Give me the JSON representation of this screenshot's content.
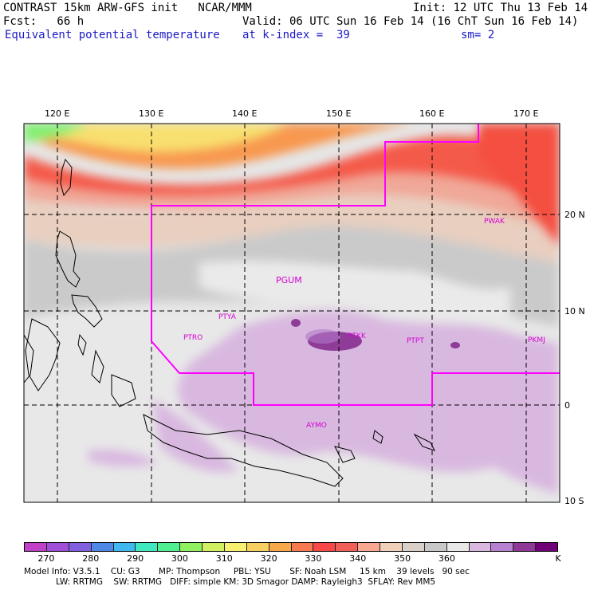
{
  "header": {
    "left_line1": "CONTRAST 15km ARW-GFS init   NCAR/MMM",
    "left_line2": "Fcst:   66 h",
    "left_line3": "Equivalent potential temperature",
    "right_line1": "Init: 12 UTC Thu 13 Feb 14",
    "right_line2": "Valid: 06 UTC Sun 16 Feb 14 (16 ChT Sun 16 Feb 14)",
    "right_line3a": "at k-index =  39",
    "right_line3b": "sm= 2"
  },
  "map": {
    "lon_labels": [
      "120 E",
      "130 E",
      "140 E",
      "150 E",
      "160 E",
      "170 E"
    ],
    "lat_labels": [
      "20 N",
      "10 N",
      "0",
      "10 S"
    ],
    "stations": [
      "PWAK",
      "PGUM",
      "PTYA",
      "PTRO",
      "PTKK",
      "PTPT",
      "PKMJ",
      "AYMO"
    ]
  },
  "colorbar": {
    "colors": [
      "#c040c8",
      "#a050d8",
      "#8060e0",
      "#5088e8",
      "#40b8f0",
      "#40e8c0",
      "#50f090",
      "#90f060",
      "#d0f060",
      "#f8f070",
      "#f8d060",
      "#f8a848",
      "#f87850",
      "#f84848",
      "#f06058",
      "#f8a890",
      "#f0d0b8",
      "#d8d0c8",
      "#c8c8c8",
      "#e8e8e8",
      "#d8b8e0",
      "#b880d0",
      "#903898",
      "#700078"
    ],
    "tick_labels": [
      "270",
      "280",
      "290",
      "300",
      "310",
      "320",
      "330",
      "340",
      "350",
      "360",
      "K"
    ]
  },
  "footer": {
    "line1": "Model Info: V3.5.1    CU: G3       MP: Thompson     PBL: YSU       SF: Noah LSM     15 km    39 levels   90 sec",
    "line2": "LW: RRTMG    SW: RRTMG   DIFF: simple KM: 3D Smagor DAMP: Rayleigh3  SFLAY: Rev MM5"
  }
}
